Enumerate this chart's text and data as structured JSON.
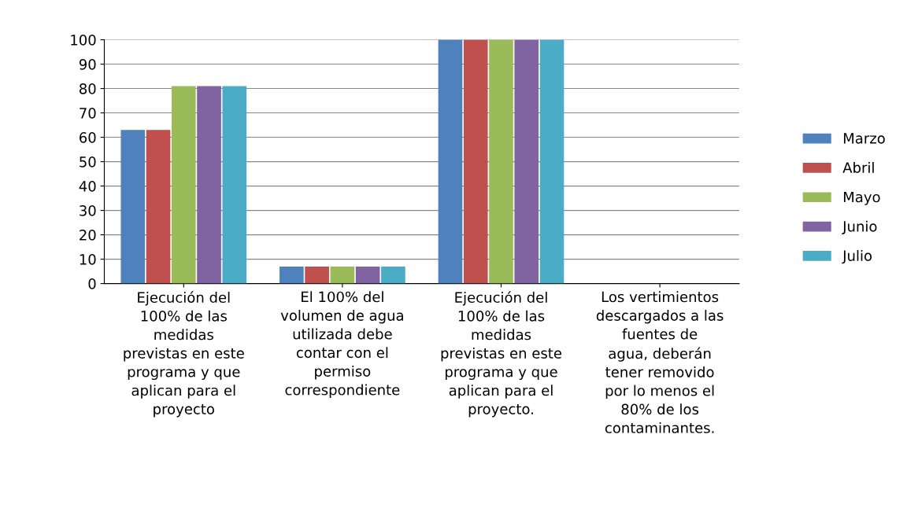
{
  "chart_data": {
    "type": "bar",
    "categories": [
      "Ejecución del\n100% de las\nmedidas\nprevistas en este\nprograma y que\naplican para el\nproyecto",
      "El 100% del\nvolumen de agua\nutilizada debe\ncontar con el\npermiso\ncorrespondiente",
      "Ejecución del\n100% de las\nmedidas\nprevistas en este\nprograma y que\naplican para el\nproyecto.",
      "Los vertimientos\ndescargados a las\nfuentes de\nagua, deberán\ntener removido\npor lo menos el\n80% de los\ncontaminantes."
    ],
    "series": [
      {
        "name": "Marzo",
        "color": "#4f81bd",
        "values": [
          63,
          7,
          100,
          0
        ]
      },
      {
        "name": "Abril",
        "color": "#c0504d",
        "values": [
          63,
          7,
          100,
          0
        ]
      },
      {
        "name": "Mayo",
        "color": "#9bbb59",
        "values": [
          81,
          7,
          100,
          0
        ]
      },
      {
        "name": "Junio",
        "color": "#8064a2",
        "values": [
          81,
          7,
          100,
          0
        ]
      },
      {
        "name": "Julio",
        "color": "#4bacc6",
        "values": [
          81,
          7,
          100,
          0
        ]
      }
    ],
    "ylim": [
      0,
      100
    ],
    "yticks": [
      0,
      10,
      20,
      30,
      40,
      50,
      60,
      70,
      80,
      90,
      100
    ],
    "grid": "y",
    "legend": "right"
  }
}
